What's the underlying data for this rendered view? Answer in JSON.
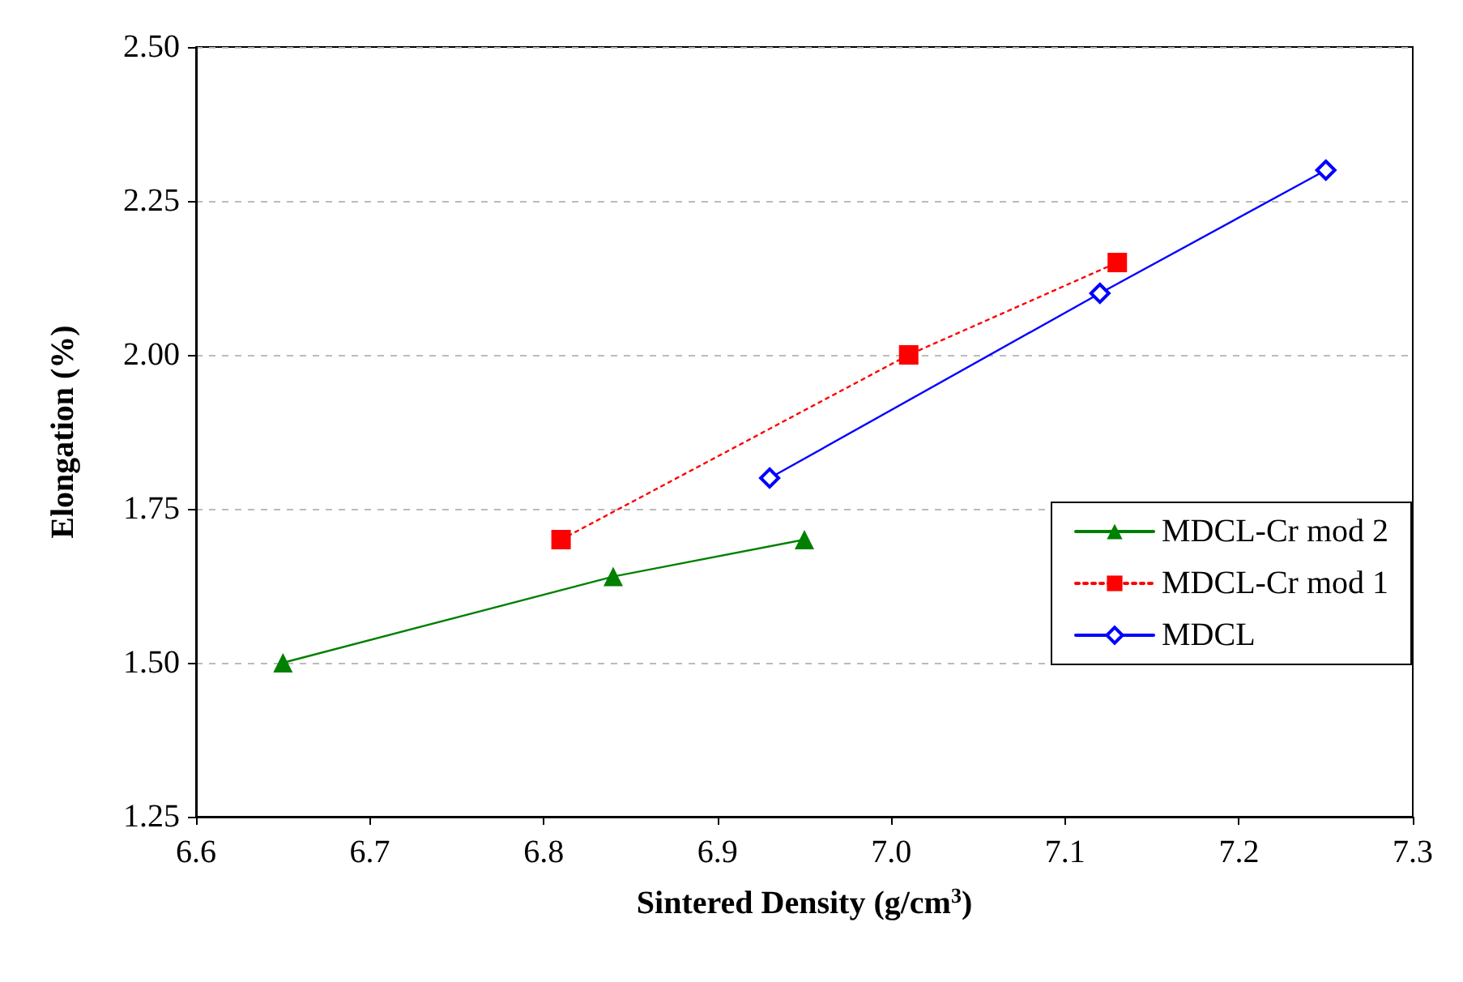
{
  "chart_data": {
    "type": "line",
    "xlabel": "Sintered Density (g/cm$^{3}$)",
    "ylabel": "Elongation (%)",
    "xlim": [
      6.6,
      7.3
    ],
    "xticks": [
      {
        "value": 6.6,
        "label": "6.6"
      },
      {
        "value": 6.7,
        "label": "6.7"
      },
      {
        "value": 6.8,
        "label": "6.8"
      },
      {
        "value": 6.9,
        "label": "6.9"
      },
      {
        "value": 7.0,
        "label": "7.0"
      },
      {
        "value": 7.1,
        "label": "7.1"
      },
      {
        "value": 7.2,
        "label": "7.2"
      },
      {
        "value": 7.3,
        "label": "7.3"
      }
    ],
    "ylim": [
      1.25,
      2.5
    ],
    "yticks": [
      {
        "value": 1.25,
        "label": "1.25"
      },
      {
        "value": 1.5,
        "label": "1.50"
      },
      {
        "value": 1.75,
        "label": "1.75"
      },
      {
        "value": 2.0,
        "label": "2.00"
      },
      {
        "value": 2.25,
        "label": "2.25"
      },
      {
        "value": 2.5,
        "label": "2.50"
      }
    ],
    "grid": "y",
    "legend": "right",
    "series": [
      {
        "name": "MDCL-Cr mod 2",
        "color": "#008000",
        "x": [
          6.65,
          6.84,
          6.95
        ],
        "values": [
          1.5,
          1.64,
          1.7
        ],
        "marker": "triangle",
        "line_style": "solid"
      },
      {
        "name": "MDCL-Cr mod 1",
        "color": "#ff0000",
        "x": [
          6.81,
          7.01,
          7.13
        ],
        "values": [
          1.7,
          2.0,
          2.15
        ],
        "marker": "square",
        "line_style": "dotted"
      },
      {
        "name": "MDCL",
        "color": "#0000ff",
        "x": [
          6.93,
          7.12,
          7.25
        ],
        "values": [
          1.8,
          2.1,
          2.3
        ],
        "marker": "diamond",
        "line_style": "solid"
      }
    ]
  }
}
